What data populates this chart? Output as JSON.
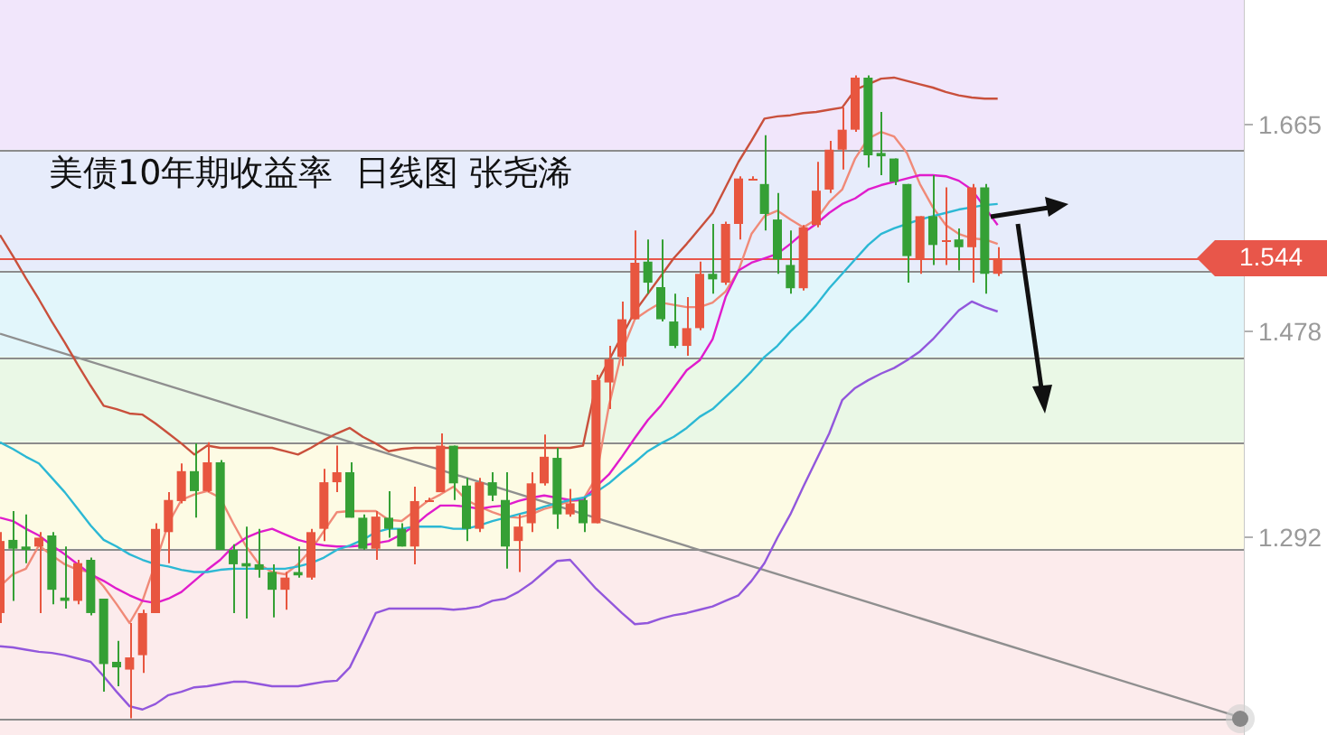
{
  "chart_data": {
    "type": "candlestick",
    "title": "美债10年期收益率  日线图 张尧浠",
    "categories": [
      null,
      null,
      null,
      null,
      null,
      null,
      null,
      null,
      null,
      null,
      null,
      null,
      null,
      null,
      null,
      null,
      null,
      null,
      null,
      null,
      null,
      null,
      null,
      null,
      null,
      null,
      null,
      null,
      null,
      null,
      null,
      null,
      null,
      null,
      null,
      null,
      null,
      null,
      null,
      null,
      null,
      null,
      null,
      null,
      null,
      null,
      null,
      null,
      null,
      null,
      null,
      null,
      null,
      null,
      null,
      null,
      null,
      null,
      null,
      null,
      null,
      null,
      null,
      null,
      null,
      null,
      null,
      null,
      null,
      null,
      null,
      null,
      null,
      null,
      null,
      null,
      null,
      null,
      null,
      null,
      null,
      null,
      null,
      null,
      null,
      null,
      null,
      null,
      null,
      null,
      null,
      null,
      null,
      null,
      null,
      null,
      null
    ],
    "ohlc": [
      [
        1.224,
        1.297,
        1.215,
        1.289
      ],
      [
        1.29,
        1.316,
        1.235,
        1.282
      ],
      [
        1.284,
        1.313,
        1.269,
        1.281
      ],
      [
        1.284,
        1.297,
        1.224,
        1.292
      ],
      [
        1.294,
        1.297,
        1.232,
        1.245
      ],
      [
        1.238,
        1.284,
        1.228,
        1.235
      ],
      [
        1.235,
        1.272,
        1.232,
        1.269
      ],
      [
        1.272,
        1.274,
        1.222,
        1.224
      ],
      [
        1.237,
        1.237,
        1.153,
        1.178
      ],
      [
        1.18,
        1.199,
        1.158,
        1.175
      ],
      [
        1.173,
        1.215,
        1.129,
        1.184
      ],
      [
        1.186,
        1.227,
        1.17,
        1.224
      ],
      [
        1.224,
        1.305,
        1.224,
        1.3
      ],
      [
        1.297,
        1.333,
        1.269,
        1.326
      ],
      [
        1.325,
        1.359,
        1.323,
        1.352
      ],
      [
        1.352,
        1.377,
        1.31,
        1.334
      ],
      [
        1.334,
        1.378,
        1.333,
        1.36
      ],
      [
        1.36,
        1.362,
        1.281,
        1.281
      ],
      [
        1.281,
        1.286,
        1.224,
        1.268
      ],
      [
        1.269,
        1.302,
        1.219,
        1.266
      ],
      [
        1.268,
        1.3,
        1.256,
        1.263
      ],
      [
        1.261,
        1.268,
        1.22,
        1.245
      ],
      [
        1.245,
        1.261,
        1.227,
        1.256
      ],
      [
        1.261,
        1.284,
        1.256,
        1.258
      ],
      [
        1.256,
        1.3,
        1.254,
        1.297
      ],
      [
        1.3,
        1.354,
        1.289,
        1.342
      ],
      [
        1.342,
        1.375,
        1.333,
        1.351
      ],
      [
        1.351,
        1.36,
        1.31,
        1.31
      ],
      [
        1.31,
        1.313,
        1.281,
        1.282
      ],
      [
        1.282,
        1.316,
        1.272,
        1.311
      ],
      [
        1.31,
        1.334,
        1.292,
        1.3
      ],
      [
        1.3,
        1.305,
        1.284,
        1.284
      ],
      [
        1.284,
        1.338,
        1.268,
        1.325
      ],
      [
        1.326,
        1.328,
        1.325,
        1.326
      ],
      [
        1.333,
        1.386,
        1.333,
        1.375
      ],
      [
        1.375,
        1.375,
        1.326,
        1.341
      ],
      [
        1.339,
        1.346,
        1.289,
        1.3
      ],
      [
        1.3,
        1.346,
        1.297,
        1.342
      ],
      [
        1.342,
        1.351,
        1.325,
        1.33
      ],
      [
        1.326,
        1.351,
        1.264,
        1.284
      ],
      [
        1.289,
        1.313,
        1.261,
        1.302
      ],
      [
        1.305,
        1.351,
        1.297,
        1.341
      ],
      [
        1.341,
        1.385,
        1.339,
        1.365
      ],
      [
        1.364,
        1.373,
        1.3,
        1.313
      ],
      [
        1.313,
        1.336,
        1.311,
        1.323
      ],
      [
        1.326,
        1.328,
        1.297,
        1.305
      ],
      [
        1.305,
        1.439,
        1.305,
        1.434
      ],
      [
        1.432,
        1.465,
        1.408,
        1.453
      ],
      [
        1.455,
        1.505,
        1.447,
        1.489
      ],
      [
        1.489,
        1.569,
        1.489,
        1.54
      ],
      [
        1.541,
        1.561,
        1.512,
        1.522
      ],
      [
        1.518,
        1.561,
        1.487,
        1.489
      ],
      [
        1.487,
        1.512,
        1.463,
        1.465
      ],
      [
        1.465,
        1.509,
        1.456,
        1.481
      ],
      [
        1.481,
        1.541,
        1.479,
        1.53
      ],
      [
        1.53,
        1.575,
        1.512,
        1.525
      ],
      [
        1.522,
        1.577,
        1.52,
        1.575
      ],
      [
        1.575,
        1.618,
        1.561,
        1.616
      ],
      [
        1.616,
        1.618,
        1.614,
        1.616
      ],
      [
        1.611,
        1.655,
        1.569,
        1.584
      ],
      [
        1.579,
        1.603,
        1.53,
        1.543
      ],
      [
        1.538,
        1.569,
        1.512,
        1.517
      ],
      [
        1.517,
        1.574,
        1.515,
        1.572
      ],
      [
        1.574,
        1.631,
        1.572,
        1.605
      ],
      [
        1.606,
        1.65,
        1.603,
        1.642
      ],
      [
        1.642,
        1.68,
        1.624,
        1.66
      ],
      [
        1.66,
        1.709,
        1.658,
        1.707
      ],
      [
        1.707,
        1.709,
        1.626,
        1.637
      ],
      [
        1.639,
        1.676,
        1.619,
        1.636
      ],
      [
        1.634,
        1.634,
        1.61,
        1.613
      ],
      [
        1.611,
        1.611,
        1.522,
        1.546
      ],
      [
        1.543,
        1.582,
        1.53,
        1.582
      ],
      [
        1.582,
        1.619,
        1.538,
        1.556
      ],
      [
        1.561,
        1.608,
        1.538,
        1.561
      ],
      [
        1.561,
        1.571,
        1.533,
        1.554
      ],
      [
        1.554,
        1.611,
        1.522,
        1.608
      ],
      [
        1.608,
        1.611,
        1.512,
        1.53
      ],
      [
        1.53,
        1.554,
        1.528,
        1.544
      ],
      null,
      null,
      null,
      null,
      null,
      null,
      null,
      null,
      null,
      null,
      null,
      null,
      null,
      null,
      null,
      null,
      null,
      null,
      null
    ],
    "series": [
      {
        "type": "line",
        "color": "#c9503c",
        "values": [
          1.565,
          1.546,
          1.526,
          1.507,
          1.487,
          1.468,
          1.448,
          1.429,
          1.411,
          1.408,
          1.404,
          1.403,
          1.395,
          1.386,
          1.377,
          1.367,
          1.375,
          1.373,
          1.373,
          1.373,
          1.373,
          1.373,
          1.37,
          1.367,
          1.373,
          1.38,
          1.386,
          1.391,
          1.383,
          1.377,
          1.37,
          1.372,
          1.373,
          1.373,
          1.373,
          1.373,
          1.373,
          1.373,
          1.373,
          1.373,
          1.373,
          1.373,
          1.373,
          1.373,
          1.373,
          1.375,
          1.43,
          1.452,
          1.474,
          1.496,
          1.512,
          1.528,
          1.544,
          1.557,
          1.571,
          1.585,
          1.608,
          1.631,
          1.65,
          1.67,
          1.672,
          1.673,
          1.675,
          1.676,
          1.678,
          1.68,
          1.696,
          1.701,
          1.706,
          1.707,
          1.704,
          1.701,
          1.698,
          1.694,
          1.691,
          1.689,
          1.688,
          1.688,
          null,
          null,
          null,
          null,
          null,
          null,
          null,
          null,
          null,
          null,
          null,
          null,
          null,
          null,
          null,
          null,
          null,
          null,
          null
        ]
      },
      {
        "type": "line",
        "color": "#2cb8d4",
        "values": [
          1.378,
          1.372,
          1.365,
          1.359,
          1.346,
          1.333,
          1.318,
          1.303,
          1.29,
          1.284,
          1.277,
          1.272,
          1.268,
          1.266,
          1.263,
          1.261,
          1.261,
          1.263,
          1.264,
          1.264,
          1.264,
          1.264,
          1.264,
          1.266,
          1.269,
          1.274,
          1.281,
          1.285,
          1.29,
          1.297,
          1.3,
          1.3,
          1.302,
          1.302,
          1.302,
          1.3,
          1.3,
          1.303,
          1.307,
          1.31,
          1.313,
          1.316,
          1.32,
          1.323,
          1.326,
          1.328,
          1.333,
          1.341,
          1.351,
          1.36,
          1.37,
          1.377,
          1.383,
          1.391,
          1.401,
          1.408,
          1.419,
          1.43,
          1.442,
          1.455,
          1.465,
          1.478,
          1.489,
          1.502,
          1.517,
          1.53,
          1.543,
          1.556,
          1.566,
          1.571,
          1.575,
          1.579,
          1.582,
          1.585,
          1.588,
          1.59,
          1.592,
          1.593,
          null,
          null,
          null,
          null,
          null,
          null,
          null,
          null,
          null,
          null,
          null,
          null,
          null,
          null,
          null,
          null,
          null,
          null,
          null
        ]
      },
      {
        "type": "line",
        "color": "#9257dc",
        "values": [
          1.194,
          1.193,
          1.191,
          1.189,
          1.188,
          1.186,
          1.183,
          1.18,
          1.167,
          1.153,
          1.14,
          1.137,
          1.142,
          1.15,
          1.153,
          1.157,
          1.158,
          1.16,
          1.162,
          1.162,
          1.16,
          1.158,
          1.158,
          1.158,
          1.16,
          1.162,
          1.163,
          1.175,
          1.199,
          1.224,
          1.228,
          1.228,
          1.228,
          1.228,
          1.228,
          1.227,
          1.228,
          1.23,
          1.235,
          1.237,
          1.243,
          1.251,
          1.261,
          1.271,
          1.272,
          1.259,
          1.246,
          1.235,
          1.224,
          1.214,
          1.215,
          1.219,
          1.222,
          1.224,
          1.227,
          1.23,
          1.235,
          1.24,
          1.253,
          1.269,
          1.292,
          1.313,
          1.338,
          1.362,
          1.386,
          1.416,
          1.427,
          1.434,
          1.44,
          1.445,
          1.452,
          1.46,
          1.471,
          1.484,
          1.497,
          1.505,
          1.5,
          1.496,
          null,
          null,
          null,
          null,
          null,
          null,
          null,
          null,
          null,
          null,
          null,
          null,
          null,
          null,
          null,
          null,
          null,
          null,
          null
        ]
      },
      {
        "type": "line",
        "color": "#e01ccc",
        "values": [
          1.31,
          1.307,
          1.3,
          1.294,
          1.285,
          1.277,
          1.268,
          1.259,
          1.253,
          1.246,
          1.24,
          1.235,
          1.233,
          1.237,
          1.243,
          1.253,
          1.263,
          1.272,
          1.284,
          1.292,
          1.297,
          1.3,
          1.295,
          1.29,
          1.287,
          1.285,
          1.284,
          1.284,
          1.285,
          1.287,
          1.289,
          1.295,
          1.303,
          1.313,
          1.321,
          1.321,
          1.32,
          1.318,
          1.32,
          1.321,
          1.325,
          1.328,
          1.33,
          1.328,
          1.326,
          1.326,
          1.338,
          1.349,
          1.365,
          1.382,
          1.398,
          1.411,
          1.427,
          1.443,
          1.452,
          1.471,
          1.509,
          1.533,
          1.54,
          1.544,
          1.548,
          1.557,
          1.567,
          1.575,
          1.585,
          1.593,
          1.598,
          1.606,
          1.61,
          1.613,
          1.616,
          1.619,
          1.619,
          1.618,
          1.614,
          1.606,
          1.59,
          1.574,
          null,
          null,
          null,
          null,
          null,
          null,
          null,
          null,
          null,
          null,
          null,
          null,
          null,
          null,
          null,
          null,
          null,
          null,
          null
        ]
      },
      {
        "type": "line",
        "color": "#f08a78",
        "values": [
          1.248,
          1.259,
          1.264,
          1.285,
          1.276,
          1.268,
          1.263,
          1.261,
          1.248,
          1.232,
          1.215,
          1.235,
          1.269,
          1.305,
          1.326,
          1.331,
          1.334,
          1.328,
          1.305,
          1.284,
          1.268,
          1.261,
          1.259,
          1.268,
          1.281,
          1.298,
          1.315,
          1.316,
          1.316,
          1.316,
          1.308,
          1.307,
          1.316,
          1.325,
          1.331,
          1.338,
          1.326,
          1.32,
          1.315,
          1.311,
          1.31,
          1.313,
          1.318,
          1.321,
          1.325,
          1.326,
          1.346,
          1.411,
          1.46,
          1.489,
          1.497,
          1.504,
          1.502,
          1.5,
          1.5,
          1.504,
          1.514,
          1.533,
          1.566,
          1.582,
          1.587,
          1.579,
          1.572,
          1.579,
          1.595,
          1.606,
          1.634,
          1.652,
          1.658,
          1.654,
          1.639,
          1.611,
          1.59,
          1.574,
          1.566,
          1.562,
          1.561,
          1.557,
          null,
          null,
          null,
          null,
          null,
          null,
          null,
          null,
          null,
          null,
          null,
          null,
          null,
          null,
          null,
          null,
          null,
          null,
          null
        ]
      },
      {
        "type": "line",
        "color": "#8f8f8f",
        "values": [
          1.476,
          null,
          null,
          null,
          null,
          null,
          null,
          null,
          null,
          null,
          null,
          null,
          null,
          null,
          null,
          null,
          null,
          null,
          null,
          null,
          null,
          null,
          null,
          null,
          null,
          null,
          null,
          null,
          null,
          null,
          null,
          null,
          null,
          null,
          null,
          null,
          null,
          null,
          null,
          null,
          null,
          null,
          null,
          null,
          null,
          null,
          null,
          null,
          null,
          null,
          null,
          null,
          null,
          null,
          null,
          null,
          null,
          null,
          null,
          null,
          null,
          null,
          null,
          null,
          null,
          null,
          null,
          null,
          null,
          null,
          null,
          null,
          null,
          null,
          null,
          null,
          null,
          null,
          null,
          null,
          null,
          null,
          null,
          null,
          null,
          null,
          null,
          null,
          null,
          null,
          null,
          null,
          null,
          null,
          null,
          null,
          1.129
        ]
      }
    ],
    "ylim": [
      1.114,
      1.777
    ],
    "yticks": [
      1.292,
      1.478,
      1.665
    ],
    "tick_labels": "y",
    "bands": [
      {
        "axis": "y",
        "from": 1.642,
        "to": 1.777,
        "color": "#f1e6fb"
      },
      {
        "axis": "y",
        "from": 1.533,
        "to": 1.642,
        "color": "#e7ecfb"
      },
      {
        "axis": "y",
        "from": 1.455,
        "to": 1.533,
        "color": "#e2f6fb"
      },
      {
        "axis": "y",
        "from": 1.378,
        "to": 1.455,
        "color": "#eaf8e6"
      },
      {
        "axis": "y",
        "from": 1.282,
        "to": 1.378,
        "color": "#fdfbe4"
      },
      {
        "axis": "y",
        "from": 1.114,
        "to": 1.282,
        "color": "#fcebec"
      }
    ],
    "ref_lines": [
      {
        "axis": "y",
        "value": 1.642,
        "color": "#8c8c8c"
      },
      {
        "axis": "y",
        "value": 1.533,
        "color": "#8c8c8c"
      },
      {
        "axis": "y",
        "value": 1.455,
        "color": "#8c8c8c"
      },
      {
        "axis": "y",
        "value": 1.378,
        "color": "#8c8c8c"
      },
      {
        "axis": "y",
        "value": 1.282,
        "color": "#8c8c8c"
      },
      {
        "axis": "y",
        "value": 1.129,
        "color": "#8c8c8c"
      },
      {
        "axis": "y",
        "value": 1.544,
        "label": "1.544",
        "color": "#e8564a"
      }
    ]
  }
}
